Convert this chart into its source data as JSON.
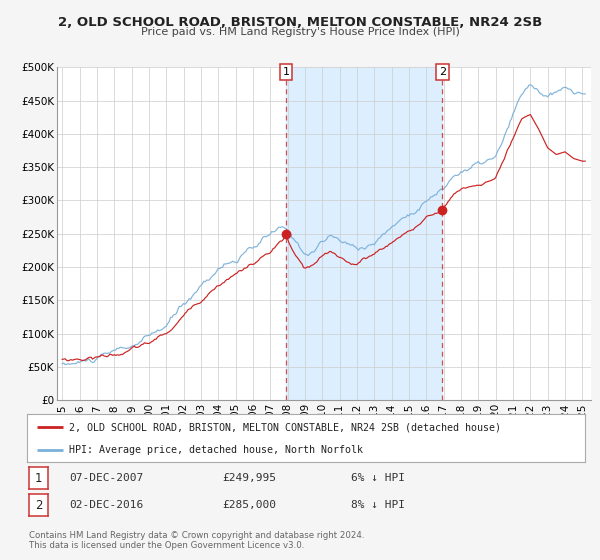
{
  "title": "2, OLD SCHOOL ROAD, BRISTON, MELTON CONSTABLE, NR24 2SB",
  "subtitle": "Price paid vs. HM Land Registry's House Price Index (HPI)",
  "ylim": [
    0,
    500000
  ],
  "yticks": [
    0,
    50000,
    100000,
    150000,
    200000,
    250000,
    300000,
    350000,
    400000,
    450000,
    500000
  ],
  "ytick_labels": [
    "£0",
    "£50K",
    "£100K",
    "£150K",
    "£200K",
    "£250K",
    "£300K",
    "£350K",
    "£400K",
    "£450K",
    "£500K"
  ],
  "xlim_start": 1994.7,
  "xlim_end": 2025.5,
  "xticks": [
    1995,
    1996,
    1997,
    1998,
    1999,
    2000,
    2001,
    2002,
    2003,
    2004,
    2005,
    2006,
    2007,
    2008,
    2009,
    2010,
    2011,
    2012,
    2013,
    2014,
    2015,
    2016,
    2017,
    2018,
    2019,
    2020,
    2021,
    2022,
    2023,
    2024,
    2025
  ],
  "sale1_x": 2007.92,
  "sale1_y": 249995,
  "sale1_label": "1",
  "sale1_date": "07-DEC-2007",
  "sale1_price": "£249,995",
  "sale1_hpi": "6% ↓ HPI",
  "sale2_x": 2016.92,
  "sale2_y": 285000,
  "sale2_label": "2",
  "sale2_date": "02-DEC-2016",
  "sale2_price": "£285,000",
  "sale2_hpi": "8% ↓ HPI",
  "shade_color": "#ddeeff",
  "hpi_color": "#7ab0d8",
  "price_color": "#cc2222",
  "dot_color": "#cc2222",
  "vline_color": "#cc3333",
  "legend_line1": "2, OLD SCHOOL ROAD, BRISTON, MELTON CONSTABLE, NR24 2SB (detached house)",
  "legend_line2": "HPI: Average price, detached house, North Norfolk",
  "footer1": "Contains HM Land Registry data © Crown copyright and database right 2024.",
  "footer2": "This data is licensed under the Open Government Licence v3.0.",
  "background_color": "#f5f5f5",
  "plot_background": "#ffffff"
}
